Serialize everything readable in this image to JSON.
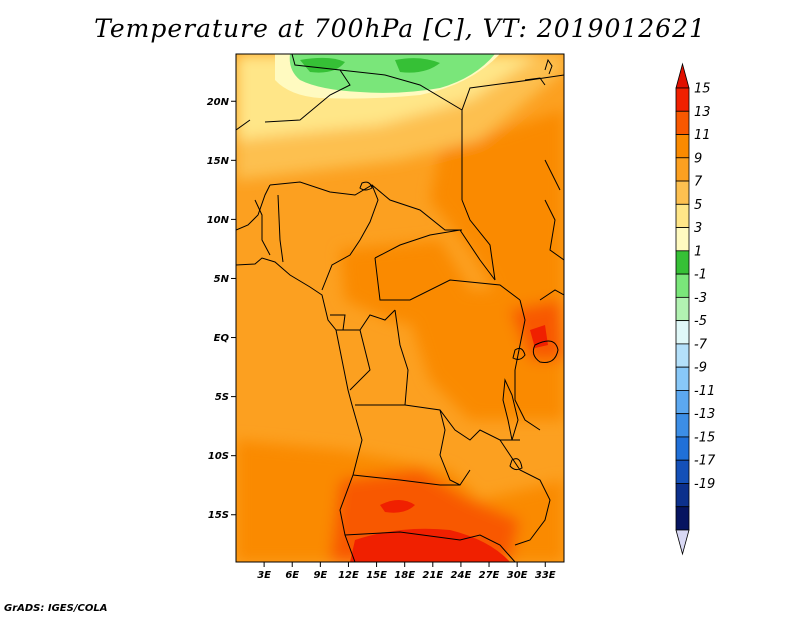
{
  "title": "Temperature at 700hPa [C], VT: 2019012621",
  "credit": "GrADS: IGES/COLA",
  "map": {
    "lon_range": [
      0,
      35
    ],
    "lat_range": [
      -19,
      24
    ],
    "lat_ticks": [
      {
        "value": 20,
        "label": "20N"
      },
      {
        "value": 15,
        "label": "15N"
      },
      {
        "value": 10,
        "label": "10N"
      },
      {
        "value": 5,
        "label": "5N"
      },
      {
        "value": 0,
        "label": "EQ"
      },
      {
        "value": -5,
        "label": "5S"
      },
      {
        "value": -10,
        "label": "10S"
      },
      {
        "value": -15,
        "label": "15S"
      }
    ],
    "lon_ticks": [
      {
        "value": 3,
        "label": "3E"
      },
      {
        "value": 6,
        "label": "6E"
      },
      {
        "value": 9,
        "label": "9E"
      },
      {
        "value": 12,
        "label": "12E"
      },
      {
        "value": 15,
        "label": "15E"
      },
      {
        "value": 18,
        "label": "18E"
      },
      {
        "value": 21,
        "label": "21E"
      },
      {
        "value": 24,
        "label": "24E"
      },
      {
        "value": 27,
        "label": "27E"
      },
      {
        "value": 30,
        "label": "30E"
      },
      {
        "value": 33,
        "label": "33E"
      }
    ]
  },
  "colorbar": {
    "levels": [
      "15",
      "13",
      "11",
      "9",
      "7",
      "5",
      "3",
      "1",
      "-1",
      "-3",
      "-5",
      "-7",
      "-9",
      "-11",
      "-13",
      "-15",
      "-17",
      "-19"
    ],
    "colors": [
      "#f02000",
      "#f85800",
      "#fa8a00",
      "#fca020",
      "#fdc050",
      "#ffe688",
      "#fffac0",
      "#36c036",
      "#7ae67a",
      "#b2f2b2",
      "#e0f8f8",
      "#b4e0fa",
      "#88c8f8",
      "#5ca8f0",
      "#3c8ee6",
      "#2070d8",
      "#1450b8",
      "#0c308c",
      "#061460"
    ],
    "top_arrow_color": "#e01000",
    "bottom_arrow_color": "#d8d8f4"
  }
}
